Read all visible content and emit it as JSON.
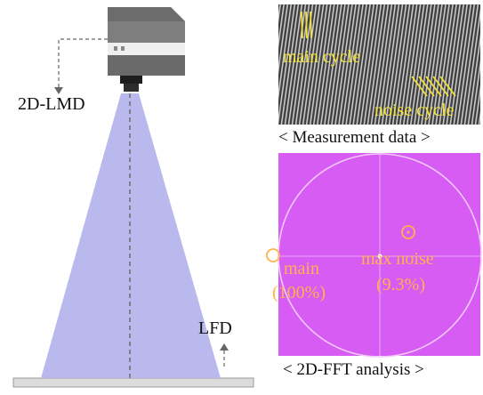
{
  "device_label": "2D-LMD",
  "lfd_label": "LFD",
  "measurement": {
    "main_cycle_label": "main cycle",
    "noise_cycle_label": "noise cycle",
    "caption": "< Measurement data >"
  },
  "fft": {
    "main_label": "main",
    "main_value": "(100%)",
    "max_noise_label": "max noise",
    "max_noise_value": "(9.3%)",
    "caption": "< 2D-FFT analysis >"
  },
  "colors": {
    "beam": "#b9b9ee",
    "camera_body": "#7e7e7e",
    "fft_bg": "#d65cf3",
    "annotation_yellow": "#f2e23a",
    "annotation_orange": "#ffb24a"
  }
}
